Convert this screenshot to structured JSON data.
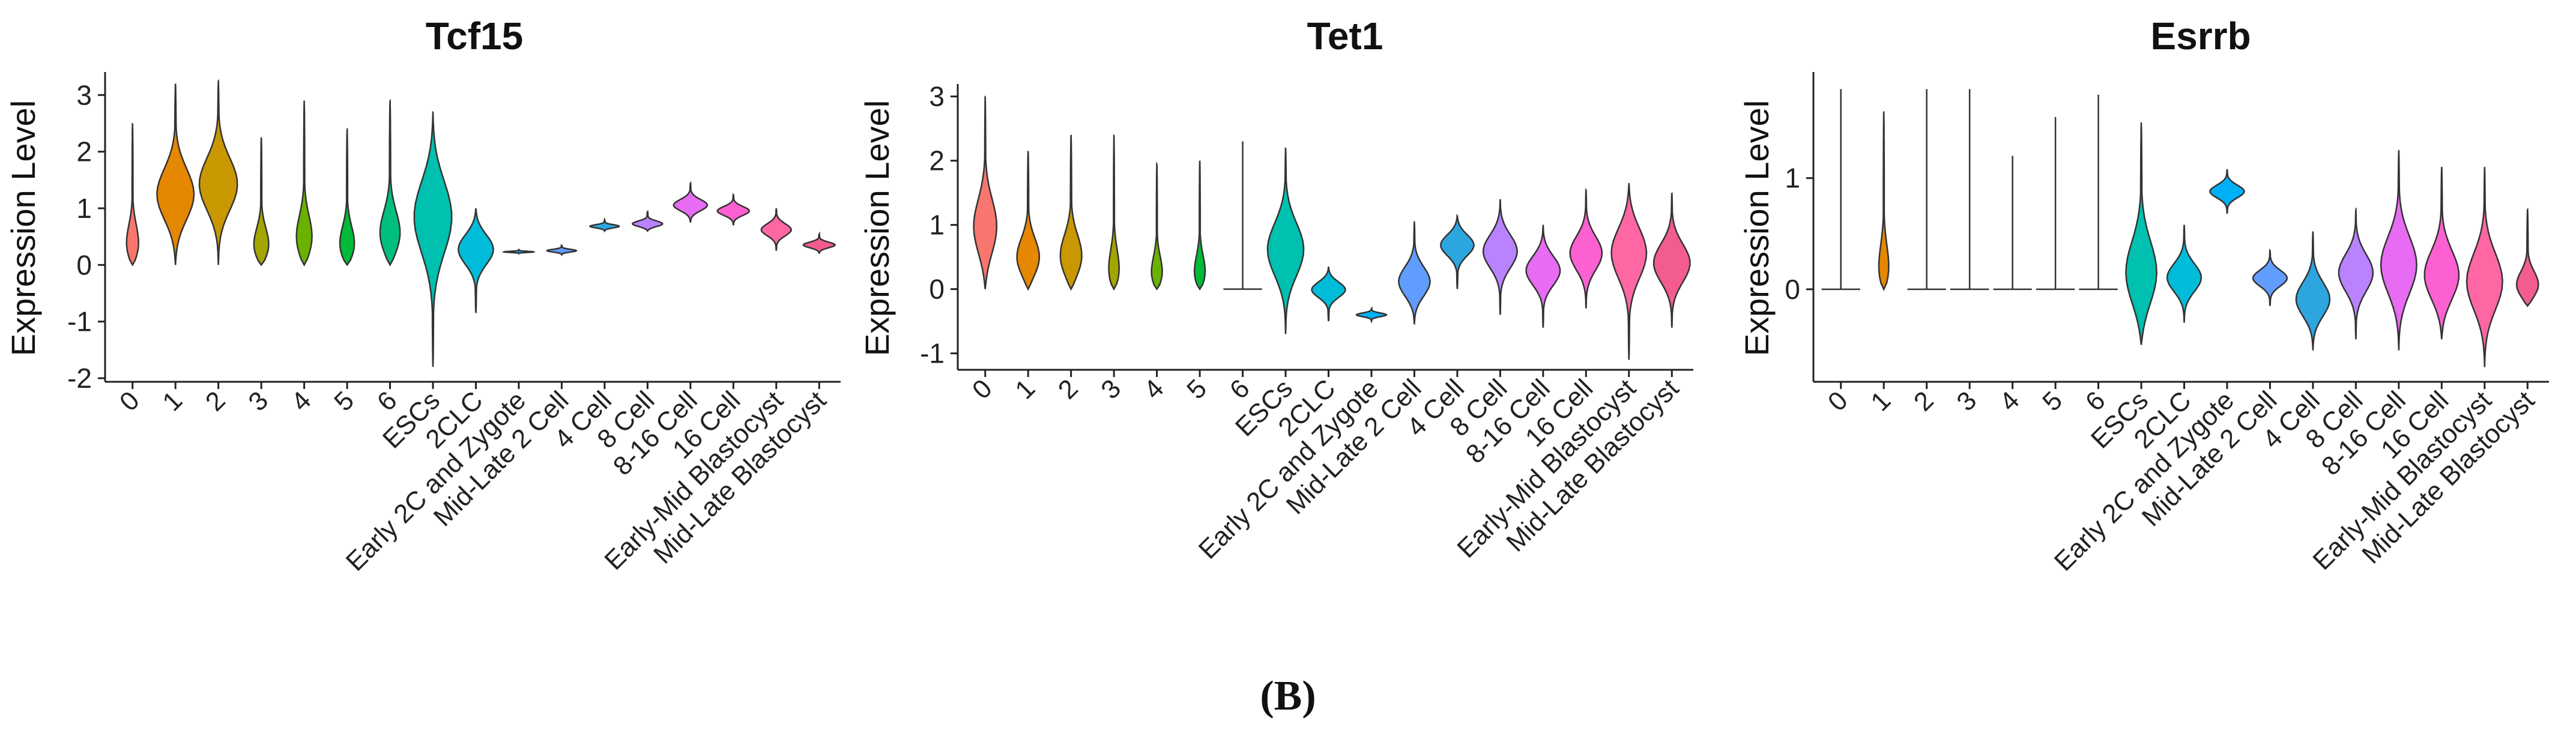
{
  "figure_caption": "(B)",
  "categories": [
    "0",
    "1",
    "2",
    "3",
    "4",
    "5",
    "6",
    "ESCs",
    "2CLC",
    "Early 2C and Zygote",
    "Mid-Late 2 Cell",
    "4 Cell",
    "8 Cell",
    "8-16 Cell",
    "16 Cell",
    "Early-Mid Blastocyst",
    "Mid-Late Blastocyst"
  ],
  "colors": [
    "#F8766D",
    "#E58700",
    "#C99800",
    "#A3A500",
    "#6BB100",
    "#00BA38",
    "#00BF7D",
    "#00C0AF",
    "#00BCD8",
    "#00B0F6",
    "#619CFF",
    "#2DA6E0",
    "#B983FF",
    "#E76BF3",
    "#FD61D1",
    "#FF67A4",
    "#F35C8F"
  ],
  "chart_data": [
    {
      "type": "violin",
      "title": "Tcf15",
      "ylabel": "Expression Level",
      "ylim": [
        -2,
        3.3
      ],
      "yticks": [
        -2,
        -1,
        0,
        1,
        2,
        3
      ],
      "series": [
        {
          "category": "0",
          "min": 0,
          "max": 2.5,
          "median": 0.2,
          "width": 0.5
        },
        {
          "category": "1",
          "min": 0,
          "max": 3.2,
          "median": 1.2,
          "width": 0.9
        },
        {
          "category": "2",
          "min": 0,
          "max": 3.25,
          "median": 1.4,
          "width": 0.9
        },
        {
          "category": "3",
          "min": 0,
          "max": 2.25,
          "median": 0.2,
          "width": 0.6
        },
        {
          "category": "4",
          "min": 0,
          "max": 2.9,
          "median": 0.3,
          "width": 0.6
        },
        {
          "category": "5",
          "min": 0,
          "max": 2.4,
          "median": 0.2,
          "width": 0.6
        },
        {
          "category": "6",
          "min": 0,
          "max": 2.9,
          "median": 0.4,
          "width": 0.7
        },
        {
          "category": "ESCs",
          "min": -1.8,
          "max": 2.7,
          "median": 0.9,
          "width": 0.9
        },
        {
          "category": "2CLC",
          "min": -0.85,
          "max": 1.0,
          "median": 0.3,
          "width": 0.85
        },
        {
          "category": "Early 2C and Zygote",
          "min": 0.2,
          "max": 0.27,
          "median": 0.23,
          "width": 0.7
        },
        {
          "category": "Mid-Late 2 Cell",
          "min": 0.18,
          "max": 0.35,
          "median": 0.25,
          "width": 0.7
        },
        {
          "category": "4 Cell",
          "min": 0.6,
          "max": 0.8,
          "median": 0.68,
          "width": 0.7
        },
        {
          "category": "8 Cell",
          "min": 0.6,
          "max": 0.95,
          "median": 0.72,
          "width": 0.75
        },
        {
          "category": "8-16 Cell",
          "min": 0.75,
          "max": 1.45,
          "median": 1.05,
          "width": 0.8
        },
        {
          "category": "16 Cell",
          "min": 0.7,
          "max": 1.25,
          "median": 0.95,
          "width": 0.75
        },
        {
          "category": "Early-Mid Blastocyst",
          "min": 0.25,
          "max": 1.0,
          "median": 0.62,
          "width": 0.7
        },
        {
          "category": "Mid-Late Blastocyst",
          "min": 0.2,
          "max": 0.55,
          "median": 0.35,
          "width": 0.75
        }
      ]
    },
    {
      "type": "violin",
      "title": "Tet1",
      "ylabel": "Expression Level",
      "ylim": [
        -1.2,
        3.1
      ],
      "yticks": [
        -1,
        0,
        1,
        2,
        3
      ],
      "series": [
        {
          "category": "0",
          "min": 0,
          "max": 3.0,
          "median": 0.9,
          "width": 0.6
        },
        {
          "category": "1",
          "min": 0,
          "max": 2.15,
          "median": 0.4,
          "width": 0.7
        },
        {
          "category": "2",
          "min": 0,
          "max": 2.4,
          "median": 0.4,
          "width": 0.7
        },
        {
          "category": "3",
          "min": 0,
          "max": 2.4,
          "median": 0.1,
          "width": 0.5
        },
        {
          "category": "4",
          "min": 0,
          "max": 1.95,
          "median": 0.1,
          "width": 0.5
        },
        {
          "category": "5",
          "min": 0,
          "max": 2.0,
          "median": 0.1,
          "width": 0.5
        },
        {
          "category": "6",
          "min": 0,
          "max": 2.3,
          "median": 0.0,
          "width": 0.02
        },
        {
          "category": "ESCs",
          "min": -0.7,
          "max": 2.2,
          "median": 0.6,
          "width": 0.85
        },
        {
          "category": "2CLC",
          "min": -0.5,
          "max": 0.35,
          "median": 0.0,
          "width": 0.8
        },
        {
          "category": "Early 2C and Zygote",
          "min": -0.5,
          "max": -0.3,
          "median": -0.4,
          "width": 0.7
        },
        {
          "category": "Mid-Late 2 Cell",
          "min": -0.55,
          "max": 1.05,
          "median": 0.1,
          "width": 0.75
        },
        {
          "category": "4 Cell",
          "min": 0.0,
          "max": 1.15,
          "median": 0.7,
          "width": 0.8
        },
        {
          "category": "8 Cell",
          "min": -0.4,
          "max": 1.4,
          "median": 0.6,
          "width": 0.8
        },
        {
          "category": "8-16 Cell",
          "min": -0.6,
          "max": 1.0,
          "median": 0.3,
          "width": 0.8
        },
        {
          "category": "16 Cell",
          "min": -0.3,
          "max": 1.55,
          "median": 0.55,
          "width": 0.75
        },
        {
          "category": "Early-Mid Blastocyst",
          "min": -1.1,
          "max": 1.65,
          "median": 0.6,
          "width": 0.85
        },
        {
          "category": "Mid-Late Blastocyst",
          "min": -0.6,
          "max": 1.5,
          "median": 0.4,
          "width": 0.85
        }
      ]
    },
    {
      "type": "violin",
      "title": "Esrrb",
      "ylabel": "Expression Level",
      "ylim": [
        -0.8,
        1.9
      ],
      "yticks": [
        0,
        1
      ],
      "series": [
        {
          "category": "0",
          "min": 0,
          "max": 1.8,
          "median": 0.0,
          "width": 0.02
        },
        {
          "category": "1",
          "min": 0,
          "max": 1.6,
          "median": 0.05,
          "width": 0.5
        },
        {
          "category": "2",
          "min": 0,
          "max": 1.8,
          "median": 0.0,
          "width": 0.02
        },
        {
          "category": "3",
          "min": 0,
          "max": 1.8,
          "median": 0.0,
          "width": 0.02
        },
        {
          "category": "4",
          "min": 0,
          "max": 1.2,
          "median": 0.0,
          "width": 0.02
        },
        {
          "category": "5",
          "min": 0,
          "max": 1.55,
          "median": 0.0,
          "width": 0.02
        },
        {
          "category": "6",
          "min": 0,
          "max": 1.75,
          "median": 0.0,
          "width": 0.02
        },
        {
          "category": "ESCs",
          "min": -0.5,
          "max": 1.5,
          "median": 0.1,
          "width": 0.8
        },
        {
          "category": "2CLC",
          "min": -0.3,
          "max": 0.58,
          "median": 0.1,
          "width": 0.8
        },
        {
          "category": "Early 2C and Zygote",
          "min": 0.68,
          "max": 1.08,
          "median": 0.88,
          "width": 0.8
        },
        {
          "category": "Mid-Late 2 Cell",
          "min": -0.15,
          "max": 0.35,
          "median": 0.1,
          "width": 0.8
        },
        {
          "category": "4 Cell",
          "min": -0.55,
          "max": 0.52,
          "median": -0.1,
          "width": 0.8
        },
        {
          "category": "8 Cell",
          "min": -0.45,
          "max": 0.72,
          "median": 0.15,
          "width": 0.8
        },
        {
          "category": "8-16 Cell",
          "min": -0.55,
          "max": 1.25,
          "median": 0.2,
          "width": 0.85
        },
        {
          "category": "16 Cell",
          "min": -0.45,
          "max": 1.1,
          "median": 0.1,
          "width": 0.85
        },
        {
          "category": "Early-Mid Blastocyst",
          "min": -0.7,
          "max": 1.1,
          "median": 0.05,
          "width": 0.85
        },
        {
          "category": "Mid-Late Blastocyst",
          "min": -0.15,
          "max": 0.72,
          "median": 0.0,
          "width": 0.7
        }
      ]
    }
  ]
}
